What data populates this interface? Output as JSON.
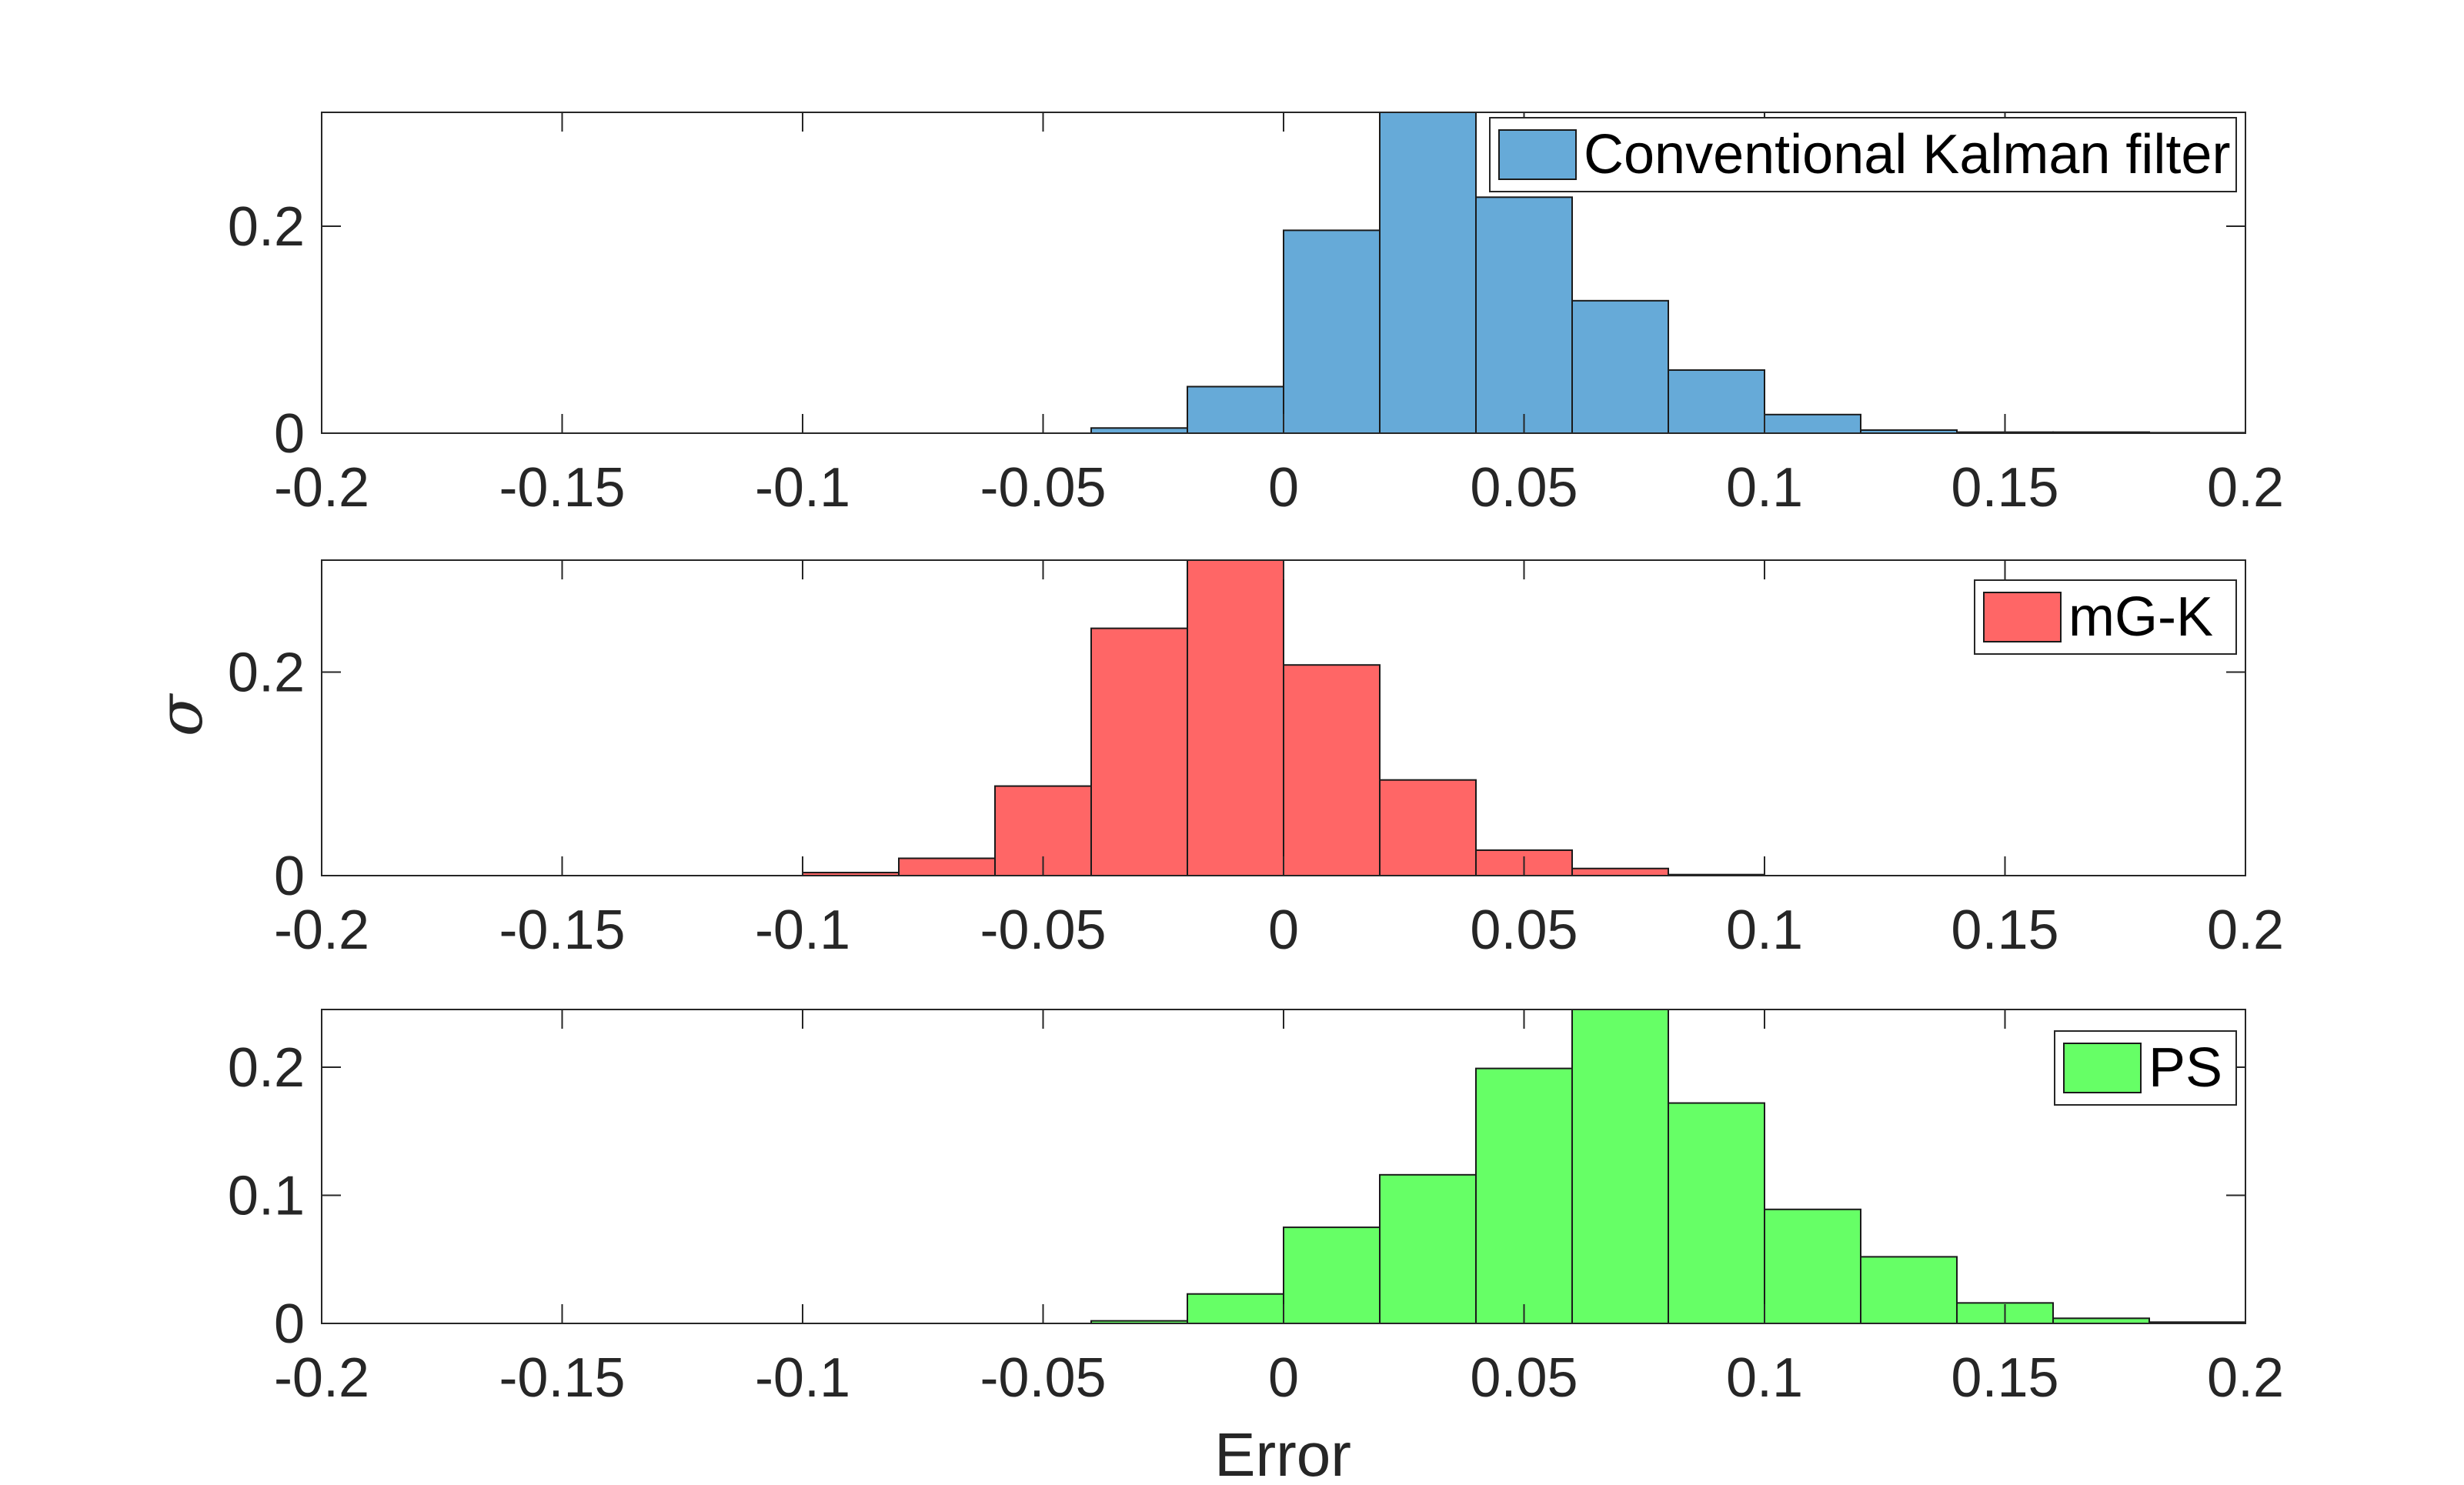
{
  "figure": {
    "xlabel": "Error",
    "ylabel": "σ"
  },
  "chart_data": [
    {
      "type": "bar",
      "subtype": "histogram",
      "series_name": "Conventional Kalman filter",
      "color": "#66aad8",
      "xlim": [
        -0.2,
        0.2
      ],
      "ylim": [
        0,
        0.31
      ],
      "xticks": [
        "-0.2",
        "-0.15",
        "-0.1",
        "-0.05",
        "0",
        "0.05",
        "0.1",
        "0.15",
        "0.2"
      ],
      "yticks": [
        "0",
        "0.2"
      ],
      "bins": [
        {
          "start": -0.04,
          "end": -0.02,
          "value": 0.005
        },
        {
          "start": -0.02,
          "end": 0.0,
          "value": 0.045
        },
        {
          "start": 0.0,
          "end": 0.02,
          "value": 0.196
        },
        {
          "start": 0.02,
          "end": 0.04,
          "value": 0.31
        },
        {
          "start": 0.04,
          "end": 0.06,
          "value": 0.228
        },
        {
          "start": 0.06,
          "end": 0.08,
          "value": 0.128
        },
        {
          "start": 0.08,
          "end": 0.1,
          "value": 0.061
        },
        {
          "start": 0.1,
          "end": 0.12,
          "value": 0.018
        },
        {
          "start": 0.12,
          "end": 0.14,
          "value": 0.003
        },
        {
          "start": 0.14,
          "end": 0.16,
          "value": 0.001
        },
        {
          "start": 0.16,
          "end": 0.18,
          "value": 0.001
        },
        {
          "start": 0.18,
          "end": 0.2,
          "value": 0.0005
        }
      ]
    },
    {
      "type": "bar",
      "subtype": "histogram",
      "series_name": "mG-K",
      "color": "#ff6666",
      "xlim": [
        -0.2,
        0.2
      ],
      "ylim": [
        0,
        0.31
      ],
      "xticks": [
        "-0.2",
        "-0.15",
        "-0.1",
        "-0.05",
        "0",
        "0.05",
        "0.1",
        "0.15",
        "0.2"
      ],
      "yticks": [
        "0",
        "0.2"
      ],
      "bins": [
        {
          "start": -0.1,
          "end": -0.08,
          "value": 0.003
        },
        {
          "start": -0.08,
          "end": -0.06,
          "value": 0.017
        },
        {
          "start": -0.06,
          "end": -0.04,
          "value": 0.088
        },
        {
          "start": -0.04,
          "end": -0.02,
          "value": 0.243
        },
        {
          "start": -0.02,
          "end": 0.0,
          "value": 0.31
        },
        {
          "start": 0.0,
          "end": 0.02,
          "value": 0.207
        },
        {
          "start": 0.02,
          "end": 0.04,
          "value": 0.094
        },
        {
          "start": 0.04,
          "end": 0.06,
          "value": 0.025
        },
        {
          "start": 0.06,
          "end": 0.08,
          "value": 0.007
        },
        {
          "start": 0.08,
          "end": 0.1,
          "value": 0.001
        }
      ]
    },
    {
      "type": "bar",
      "subtype": "histogram",
      "series_name": "PS",
      "color": "#66ff66",
      "xlim": [
        -0.2,
        0.2
      ],
      "ylim": [
        0,
        0.245
      ],
      "xticks": [
        "-0.2",
        "-0.15",
        "-0.1",
        "-0.05",
        "0",
        "0.05",
        "0.1",
        "0.15",
        "0.2"
      ],
      "yticks": [
        "0",
        "0.1",
        "0.2"
      ],
      "bins": [
        {
          "start": -0.04,
          "end": -0.02,
          "value": 0.002
        },
        {
          "start": -0.02,
          "end": 0.0,
          "value": 0.023
        },
        {
          "start": 0.0,
          "end": 0.02,
          "value": 0.075
        },
        {
          "start": 0.02,
          "end": 0.04,
          "value": 0.116
        },
        {
          "start": 0.04,
          "end": 0.06,
          "value": 0.199
        },
        {
          "start": 0.06,
          "end": 0.08,
          "value": 0.245
        },
        {
          "start": 0.08,
          "end": 0.1,
          "value": 0.172
        },
        {
          "start": 0.1,
          "end": 0.12,
          "value": 0.089
        },
        {
          "start": 0.12,
          "end": 0.14,
          "value": 0.052
        },
        {
          "start": 0.14,
          "end": 0.16,
          "value": 0.016
        },
        {
          "start": 0.16,
          "end": 0.18,
          "value": 0.004
        },
        {
          "start": 0.18,
          "end": 0.2,
          "value": 0.001
        }
      ]
    }
  ]
}
